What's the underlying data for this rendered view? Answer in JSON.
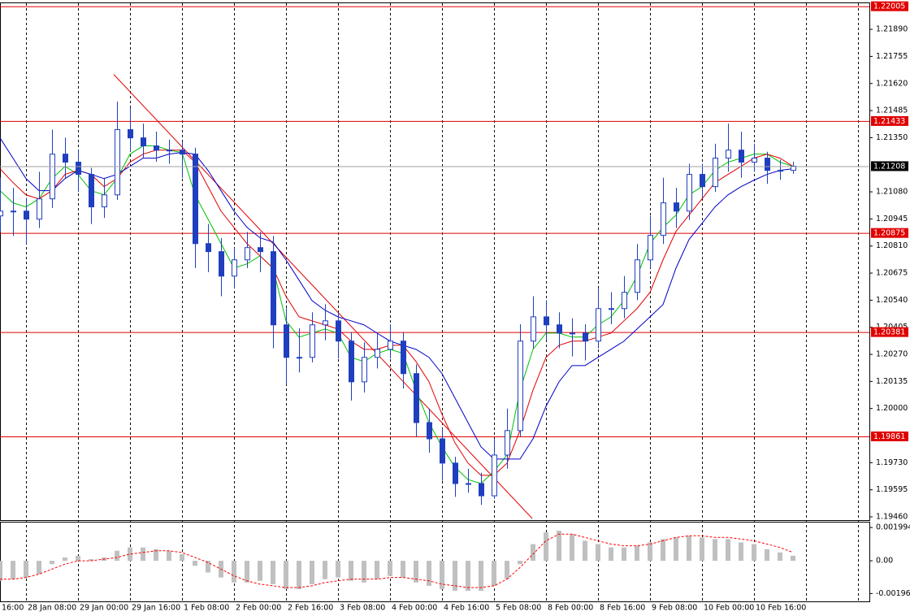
{
  "chart_data": [
    {
      "type": "candlestick",
      "categories": [
        "16:00",
        null,
        "28 Jan 08:00",
        null,
        null,
        null,
        "29 Jan 00:00",
        null,
        null,
        null,
        "29 Jan 16:00",
        null,
        null,
        null,
        "1 Feb 08:00",
        null,
        null,
        null,
        "2 Feb 00:00",
        null,
        null,
        null,
        "2 Feb 16:00",
        null,
        null,
        null,
        "3 Feb 08:00",
        null,
        null,
        null,
        "4 Feb 00:00",
        null,
        null,
        null,
        "4 Feb 16:00",
        null,
        null,
        null,
        "5 Feb 08:00",
        null,
        null,
        null,
        "8 Feb 00:00",
        null,
        null,
        null,
        "8 Feb 16:00",
        null,
        null,
        null,
        "9 Feb 08:00",
        null,
        null,
        null,
        "10 Feb 00:00",
        null,
        null,
        null,
        "10 Feb 16:00",
        null,
        null,
        null
      ],
      "open": [
        1.2096,
        1.20984,
        1.20984,
        1.20944,
        1.21045,
        1.21268,
        1.21228,
        1.21167,
        1.21005,
        1.21065,
        1.2139,
        1.21349,
        1.21309,
        1.21288,
        1.21288,
        1.21268,
        1.20822,
        1.20782,
        1.2066,
        1.20741,
        1.20802,
        1.20782,
        1.20417,
        1.20255,
        1.20255,
        1.20417,
        1.20437,
        1.20336,
        1.20133,
        1.20255,
        1.20295,
        1.20336,
        1.20174,
        1.1993,
        1.19849,
        1.19728,
        1.19626,
        1.19626,
        1.19565,
        1.19768,
        1.1989,
        1.20336,
        1.20457,
        1.20417,
        1.20376,
        1.20376,
        1.20336,
        1.20498,
        1.20498,
        1.20579,
        1.20741,
        1.20863,
        1.21025,
        1.20984,
        1.21167,
        1.21106,
        1.21248,
        1.21288,
        1.21228,
        1.21248,
        1.21187,
        1.21187
      ],
      "high": [
        1.2115,
        1.211,
        1.2105,
        1.2118,
        1.2139,
        1.2135,
        1.2129,
        1.212,
        1.2115,
        1.2153,
        1.215,
        1.2142,
        1.2138,
        1.2134,
        1.2133,
        1.213,
        1.2092,
        1.2085,
        1.208,
        1.2088,
        1.2088,
        1.2086,
        1.205,
        1.204,
        1.2048,
        1.2052,
        1.2048,
        1.2038,
        1.2033,
        1.2038,
        1.2042,
        1.2038,
        1.2022,
        1.2,
        1.199,
        1.1976,
        1.197,
        1.1968,
        1.1985,
        1.2,
        1.2042,
        1.2056,
        1.2054,
        1.2048,
        1.2045,
        1.2042,
        1.206,
        1.2058,
        1.2066,
        1.2082,
        1.2096,
        1.2115,
        1.211,
        1.2122,
        1.2122,
        1.2132,
        1.2142,
        1.2138,
        1.2132,
        1.2128,
        1.2124,
        1.2123
      ],
      "low": [
        1.2088,
        1.2086,
        1.2082,
        1.209,
        1.21,
        1.2115,
        1.2108,
        1.2092,
        1.2095,
        1.2104,
        1.2128,
        1.2125,
        1.2123,
        1.2122,
        1.2115,
        1.207,
        1.2068,
        1.2056,
        1.206,
        1.207,
        1.2068,
        1.203,
        1.2012,
        1.2018,
        1.2023,
        1.2034,
        1.2025,
        1.2004,
        1.2008,
        1.202,
        1.2025,
        1.201,
        1.1986,
        1.1978,
        1.1964,
        1.1956,
        1.1958,
        1.1952,
        1.1955,
        1.197,
        1.1986,
        1.203,
        1.2034,
        1.203,
        1.2026,
        1.2024,
        1.203,
        1.2042,
        1.2045,
        1.2054,
        1.207,
        1.2082,
        1.209,
        1.2094,
        1.2105,
        1.2108,
        1.2118,
        1.2115,
        1.2118,
        1.2112,
        1.2114,
        1.2117
      ],
      "close": [
        1.20984,
        1.20984,
        1.20944,
        1.21045,
        1.21268,
        1.21228,
        1.21167,
        1.21005,
        1.21065,
        1.2139,
        1.21349,
        1.21309,
        1.21288,
        1.21288,
        1.21268,
        1.20822,
        1.20782,
        1.2066,
        1.20741,
        1.20802,
        1.20782,
        1.20417,
        1.20255,
        1.20255,
        1.20417,
        1.20437,
        1.20336,
        1.20133,
        1.20255,
        1.20295,
        1.20336,
        1.20174,
        1.1993,
        1.19849,
        1.19728,
        1.19626,
        1.19626,
        1.19565,
        1.19768,
        1.1989,
        1.20336,
        1.20457,
        1.20417,
        1.20376,
        1.20376,
        1.20336,
        1.20498,
        1.20498,
        1.20579,
        1.20741,
        1.20863,
        1.21025,
        1.20984,
        1.21167,
        1.21106,
        1.21248,
        1.21288,
        1.21228,
        1.21248,
        1.21187,
        1.21187,
        1.21208
      ],
      "color": "#1f3fbf",
      "series": [
        {
          "color": "#00c000",
          "values": [
            1.21086,
            1.21025,
            1.21005,
            1.21045,
            1.21146,
            1.21207,
            1.21167,
            1.21086,
            1.21065,
            1.21146,
            1.21268,
            1.21309,
            1.21309,
            1.21288,
            1.21276,
            1.21065,
            1.20944,
            1.20822,
            1.207,
            1.20721,
            1.20761,
            1.207,
            1.20437,
            1.20356,
            1.20376,
            1.20396,
            1.20376,
            1.20255,
            1.20234,
            1.20275,
            1.20295,
            1.20275,
            1.20092,
            1.1993,
            1.19809,
            1.19707,
            1.19646,
            1.19626,
            1.19687,
            1.19768,
            1.20092,
            1.20295,
            1.20376,
            1.20376,
            1.20356,
            1.20356,
            1.20417,
            1.20457,
            1.20538,
            1.2066,
            1.20822,
            1.20903,
            1.20964,
            1.21065,
            1.21106,
            1.21187,
            1.21228,
            1.21248,
            1.21268,
            1.21268,
            1.21228,
            1.21207
          ]
        },
        {
          "color": "#e00000",
          "values": [
            1.21195,
            1.21126,
            1.21065,
            1.21045,
            1.21086,
            1.21167,
            1.21187,
            1.21167,
            1.21106,
            1.21146,
            1.21228,
            1.21268,
            1.21288,
            1.21288,
            1.21288,
            1.21228,
            1.21106,
            1.20984,
            1.20903,
            1.20822,
            1.20761,
            1.207,
            1.20559,
            1.20457,
            1.20437,
            1.20417,
            1.20396,
            1.20336,
            1.20295,
            1.20295,
            1.20315,
            1.20315,
            1.20234,
            1.20133,
            1.19971,
            1.19829,
            1.19728,
            1.19667,
            1.19667,
            1.19728,
            1.1989,
            1.20092,
            1.20255,
            1.20315,
            1.20336,
            1.20336,
            1.20356,
            1.20376,
            1.20437,
            1.20498,
            1.20579,
            1.20741,
            1.20883,
            1.20964,
            1.21045,
            1.21126,
            1.21167,
            1.21207,
            1.21248,
            1.21268,
            1.21248,
            1.21207
          ]
        },
        {
          "color": "#0000c8",
          "values": [
            1.21349,
            1.21248,
            1.21146,
            1.21086,
            1.21086,
            1.21146,
            1.21187,
            1.21167,
            1.21146,
            1.21167,
            1.21207,
            1.21248,
            1.21248,
            1.21268,
            1.21276,
            1.21268,
            1.21187,
            1.21086,
            1.20984,
            1.20903,
            1.20851,
            1.2083,
            1.20741,
            1.2064,
            1.20538,
            1.2049,
            1.20457,
            1.20437,
            1.20417,
            1.20376,
            1.20336,
            1.20315,
            1.20295,
            1.20255,
            1.20174,
            1.20052,
            1.1993,
            1.19809,
            1.19748,
            1.19748,
            1.19748,
            1.19849,
            1.20011,
            1.20133,
            1.20214,
            1.20214,
            1.20255,
            1.20295,
            1.20336,
            1.20396,
            1.20457,
            1.20518,
            1.207,
            1.20842,
            1.20923,
            1.21005,
            1.21065,
            1.21106,
            1.21138,
            1.21167,
            1.21187,
            1.21195
          ]
        }
      ],
      "ylim": [
        1.1946,
        1.2202
      ],
      "yticks": [
        {
          "value": 1.1946,
          "label": "1.19460"
        },
        1.19595,
        {
          "value": 1.1973,
          "label": "1.19730"
        },
        {
          "value": 1.2,
          "label": "1.20000"
        },
        1.20135,
        {
          "value": 1.2027,
          "label": "1.20270"
        },
        1.20405,
        {
          "value": 1.2054,
          "label": "1.20540"
        },
        1.20675,
        {
          "value": 1.2081,
          "label": "1.20810"
        },
        1.20945,
        {
          "value": 1.2108,
          "label": "1.21080"
        },
        {
          "value": 1.2135,
          "label": "1.21350"
        },
        1.21485,
        {
          "value": 1.2162,
          "label": "1.21620"
        },
        1.21755,
        {
          "value": 1.2189,
          "label": "1.21890"
        }
      ],
      "levels": [
        1.22005,
        1.21433,
        1.20875,
        1.20381,
        1.19861
      ],
      "level_color": "#e00000",
      "last_price": 1.21208,
      "trendline": {
        "x": [
          8.75,
          40.94
        ],
        "y": [
          1.21665,
          1.19452
        ],
        "color": "#e00000"
      }
    },
    {
      "type": "macd",
      "histogram": [
        -0.0012,
        -0.0011,
        -0.001,
        -0.0008,
        -0.0002,
        0.0002,
        0.0003,
        0.0001,
        0.0002,
        0.0006,
        0.0008,
        0.0008,
        0.0007,
        0.0006,
        0.0004,
        -0.0003,
        -0.0007,
        -0.001,
        -0.0013,
        -0.0013,
        -0.0012,
        -0.0014,
        -0.0017,
        -0.0017,
        -0.0014,
        -0.0011,
        -0.001,
        -0.0012,
        -0.0013,
        -0.0011,
        -0.0009,
        -0.001,
        -0.0013,
        -0.0015,
        -0.0017,
        -0.0018,
        -0.0018,
        -0.0018,
        -0.0015,
        -0.0011,
        -0.0002,
        0.001,
        0.0017,
        0.0018,
        0.0016,
        0.0012,
        0.001,
        0.0008,
        0.0008,
        0.0009,
        0.0011,
        0.0013,
        0.0014,
        0.0015,
        0.0014,
        0.0013,
        0.0013,
        0.0011,
        0.001,
        0.0007,
        0.0005,
        0.0003
      ],
      "histogram_color": "#c0c0c0",
      "signal": [
        -0.0011,
        -0.0011,
        -0.001,
        -0.0008,
        -0.0005,
        -0.0002,
        0,
        0,
        0.0001,
        0.0002,
        0.0004,
        0.0005,
        0.0006,
        0.0006,
        0.0005,
        0.0002,
        -0.0001,
        -0.0005,
        -0.0009,
        -0.0012,
        -0.0014,
        -0.0015,
        -0.0016,
        -0.0016,
        -0.0015,
        -0.0013,
        -0.0012,
        -0.0011,
        -0.0011,
        -0.0011,
        -0.001,
        -0.001,
        -0.0011,
        -0.0012,
        -0.0014,
        -0.0015,
        -0.0016,
        -0.0016,
        -0.0015,
        -0.0011,
        -0.0004,
        0.0004,
        0.0012,
        0.0016,
        0.0016,
        0.0014,
        0.0012,
        0.001,
        0.0009,
        0.0009,
        0.001,
        0.0012,
        0.0014,
        0.0015,
        0.0015,
        0.0014,
        0.0014,
        0.0013,
        0.0012,
        0.001,
        0.0008,
        0.0005
      ],
      "signal_color": "#ff0000",
      "ylim": [
        -0.00243,
        0.00234
      ],
      "yticks": [
        -0.001961,
        {
          "value": 0,
          "label": "0.00"
        },
        0.001994
      ]
    }
  ]
}
